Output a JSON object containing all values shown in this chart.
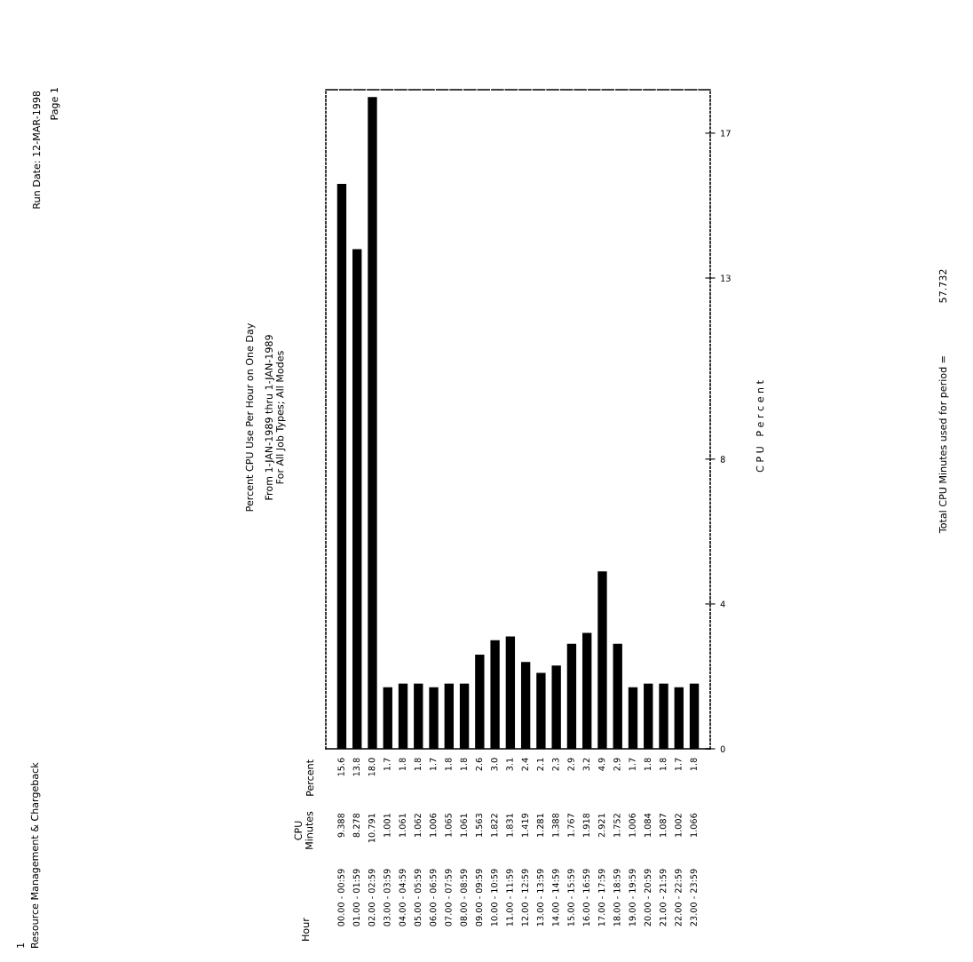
{
  "chart_data": {
    "type": "bar",
    "title": "Percent CPU Use Per Hour on One Day",
    "subtitle": "From 1-JAN-1989 thru 1-JAN-1989\nFor All Job Types; All Modes",
    "y2label": "C P U   P e r c e n t",
    "categories": [
      "00.00 - 00:59",
      "01.00 - 01:59",
      "02.00 - 02:59",
      "03.00 - 03:59",
      "04.00 - 04:59",
      "05.00 - 05:59",
      "06.00 - 06:59",
      "07.00 - 07:59",
      "08.00 - 08:59",
      "09.00 - 09:59",
      "10.00 - 10:59",
      "11.00 - 11:59",
      "12.00 - 12:59",
      "13.00 - 13:59",
      "14.00 - 14:59",
      "15.00 - 15:59",
      "16.00 - 16:59",
      "17.00 - 17:59",
      "18.00 - 18:59",
      "19.00 - 19:59",
      "20.00 - 20:59",
      "21.00 - 21:59",
      "22.00 - 22:59",
      "23.00 - 23:59"
    ],
    "series": [
      {
        "axis": "y2",
        "color": "#000000",
        "values": [
          15.6,
          13.8,
          18.0,
          1.7,
          1.8,
          1.8,
          1.7,
          1.8,
          1.8,
          2.6,
          3.0,
          3.1,
          2.4,
          2.1,
          2.3,
          2.9,
          3.2,
          4.9,
          2.9,
          1.7,
          1.8,
          1.8,
          1.7,
          1.8
        ],
        "value_labels": [
          "15.6",
          "13.8",
          "18.0",
          "1.7",
          "1.8",
          "1.8",
          "1.7",
          "1.8",
          "1.8",
          "2.6",
          "3.0",
          "3.1",
          "2.4",
          "2.1",
          "2.3",
          "2.9",
          "3.2",
          "4.9",
          "2.9",
          "1.7",
          "1.8",
          "1.8",
          "1.7",
          "1.8"
        ]
      }
    ],
    "y2lim": [
      0,
      18.2
    ],
    "y2ticks": [
      0,
      4,
      8,
      13,
      17
    ],
    "annotations": [
      "1",
      "Resource Management & Chargeback",
      "Run Date: 12-MAR-1998",
      "Page 1",
      "Hour",
      "CPU\nMinutes",
      "Percent",
      "Total CPU Minutes used for period =",
      "57.732",
      "9.388",
      "8.278",
      "10.791",
      "1.001",
      "1.061",
      "1.062",
      "1.006",
      "1.065",
      "1.061",
      "1.563",
      "1.822",
      "1.831",
      "1.419",
      "1.281",
      "1.388",
      "1.767",
      "1.918",
      "2.921",
      "1.752",
      "1.006",
      "1.084",
      "1.087",
      "1.002",
      "1.066"
    ]
  }
}
